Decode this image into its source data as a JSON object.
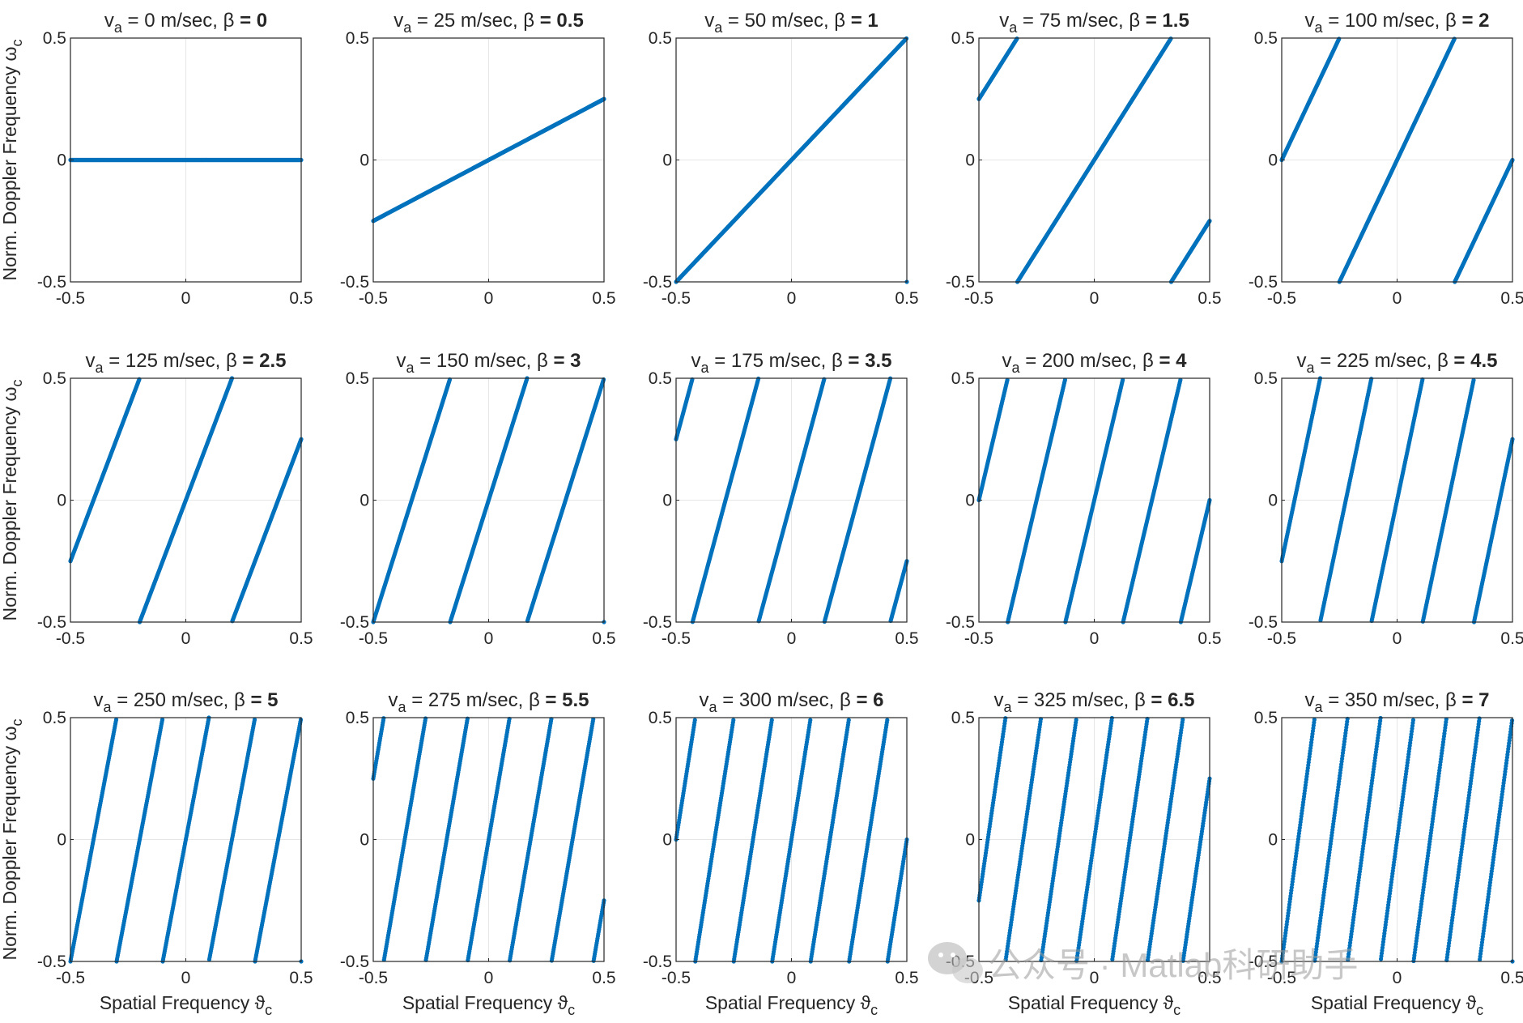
{
  "chart_data": {
    "type": "scatter",
    "layout": "3 rows x 5 columns of subplots",
    "xlabel": "Spatial Frequency ϑ",
    "xlabel_sub": "c",
    "ylabel": "Norm. Doppler Frequency ω",
    "ylabel_sub": "c",
    "xlim": [
      -0.5,
      0.5
    ],
    "ylim": [
      -0.5,
      0.5
    ],
    "xticks": [
      "-0.5",
      "0",
      "0.5"
    ],
    "yticks": [
      "-0.5",
      "0",
      "0.5"
    ],
    "grid": true,
    "marker_color": "#0072BD",
    "relation": "omega_c = beta * theta_c, wrapped into [-0.5, 0.5)",
    "subplots": [
      {
        "title_prefix": "v",
        "title_sub": "a",
        "title_mid": " = 0 m/sec, β ",
        "title_bold": "= 0",
        "va": 0,
        "beta": 0
      },
      {
        "title_prefix": "v",
        "title_sub": "a",
        "title_mid": " = 25 m/sec, β ",
        "title_bold": "= 0.5",
        "va": 25,
        "beta": 0.5
      },
      {
        "title_prefix": "v",
        "title_sub": "a",
        "title_mid": " = 50 m/sec, β ",
        "title_bold": "= 1",
        "va": 50,
        "beta": 1
      },
      {
        "title_prefix": "v",
        "title_sub": "a",
        "title_mid": " = 75 m/sec, β ",
        "title_bold": "= 1.5",
        "va": 75,
        "beta": 1.5
      },
      {
        "title_prefix": "v",
        "title_sub": "a",
        "title_mid": " = 100 m/sec, β ",
        "title_bold": "= 2",
        "va": 100,
        "beta": 2
      },
      {
        "title_prefix": "v",
        "title_sub": "a",
        "title_mid": " = 125 m/sec, β ",
        "title_bold": "= 2.5",
        "va": 125,
        "beta": 2.5
      },
      {
        "title_prefix": "v",
        "title_sub": "a",
        "title_mid": " = 150 m/sec, β ",
        "title_bold": "= 3",
        "va": 150,
        "beta": 3
      },
      {
        "title_prefix": "v",
        "title_sub": "a",
        "title_mid": " = 175 m/sec, β ",
        "title_bold": "= 3.5",
        "va": 175,
        "beta": 3.5
      },
      {
        "title_prefix": "v",
        "title_sub": "a",
        "title_mid": " = 200 m/sec, β ",
        "title_bold": "= 4",
        "va": 200,
        "beta": 4
      },
      {
        "title_prefix": "v",
        "title_sub": "a",
        "title_mid": " = 225 m/sec, β ",
        "title_bold": "= 4.5",
        "va": 225,
        "beta": 4.5
      },
      {
        "title_prefix": "v",
        "title_sub": "a",
        "title_mid": " = 250 m/sec, β ",
        "title_bold": "= 5",
        "va": 250,
        "beta": 5
      },
      {
        "title_prefix": "v",
        "title_sub": "a",
        "title_mid": " = 275 m/sec, β ",
        "title_bold": "= 5.5",
        "va": 275,
        "beta": 5.5
      },
      {
        "title_prefix": "v",
        "title_sub": "a",
        "title_mid": " = 300 m/sec, β ",
        "title_bold": "= 6",
        "va": 300,
        "beta": 6
      },
      {
        "title_prefix": "v",
        "title_sub": "a",
        "title_mid": " = 325 m/sec, β ",
        "title_bold": "= 6.5",
        "va": 325,
        "beta": 6.5
      },
      {
        "title_prefix": "v",
        "title_sub": "a",
        "title_mid": " = 350 m/sec, β ",
        "title_bold": "= 7",
        "va": 350,
        "beta": 7
      }
    ]
  },
  "watermark": {
    "text": "公众号 · Matlab科研助手",
    "icon": "wechat-icon"
  }
}
